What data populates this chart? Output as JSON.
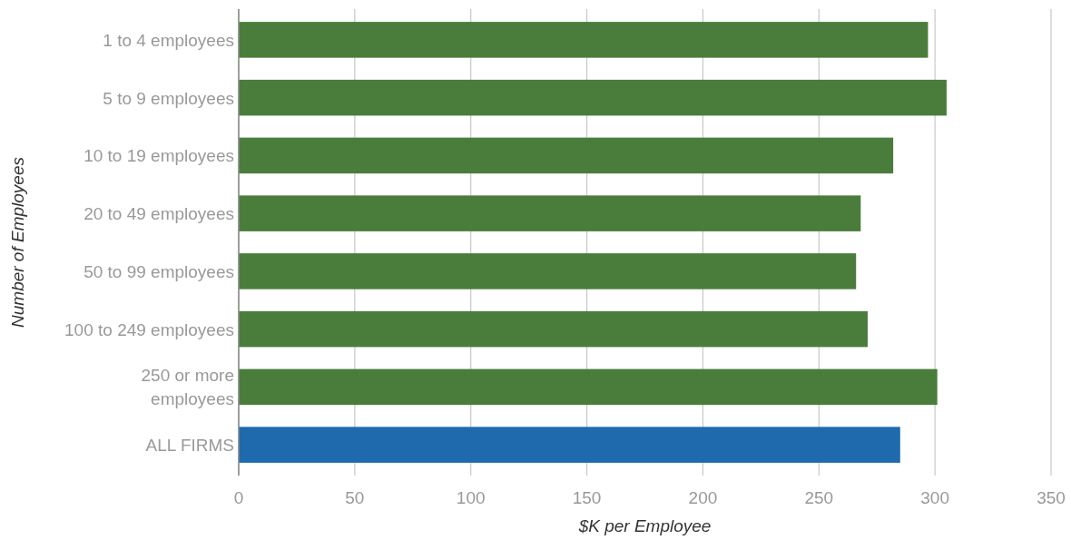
{
  "chart_data": {
    "type": "bar",
    "orientation": "horizontal",
    "xlabel": "$K per Employee",
    "ylabel": "Number of Employees",
    "categories": [
      "1 to 4 employees",
      "5 to 9 employees",
      "10 to 19 employees",
      "20 to 49 employees",
      "50 to 99 employees",
      "100 to 249 employees",
      "250 or more employees",
      "ALL FIRMS"
    ],
    "values": [
      297,
      305,
      282,
      268,
      266,
      271,
      301,
      285
    ],
    "colors": [
      "#4a7d3b",
      "#4a7d3b",
      "#4a7d3b",
      "#4a7d3b",
      "#4a7d3b",
      "#4a7d3b",
      "#4a7d3b",
      "#1f6aad"
    ],
    "xlim": [
      0,
      350
    ],
    "xticks": [
      0,
      50,
      100,
      150,
      200,
      250,
      300,
      350
    ],
    "grid": "x"
  }
}
